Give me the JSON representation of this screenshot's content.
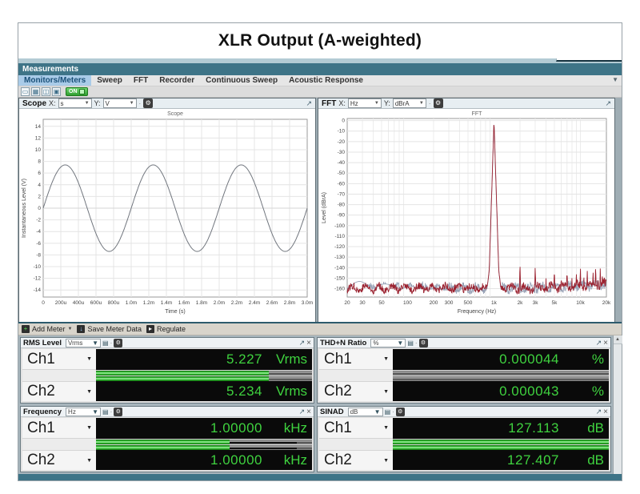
{
  "page_title": "XLR Output (A-weighted)",
  "measurements_panel": {
    "title": "Measurements"
  },
  "tabs": [
    {
      "label": "Monitors/Meters",
      "selected": true
    },
    {
      "label": "Sweep",
      "selected": false
    },
    {
      "label": "FFT",
      "selected": false
    },
    {
      "label": "Recorder",
      "selected": false
    },
    {
      "label": "Continuous Sweep",
      "selected": false
    },
    {
      "label": "Acoustic Response",
      "selected": false
    }
  ],
  "quick_toolbar": {
    "on_label": "ON"
  },
  "scope_panel": {
    "title": "Scope",
    "x_label": "X:",
    "x_unit": "s",
    "y_label": "Y:",
    "y_unit": "V"
  },
  "fft_panel": {
    "title": "FFT",
    "x_label": "X:",
    "x_unit": "Hz",
    "y_label": "Y:",
    "y_unit": "dBrA"
  },
  "meter_toolbar": {
    "add_meter": "Add Meter",
    "save_meter_data": "Save Meter Data",
    "regulate": "Regulate"
  },
  "meters": [
    {
      "title": "RMS Level",
      "unit": "Vrms",
      "channels": [
        {
          "name": "Ch1",
          "value": "5.227",
          "unit": "Vrms",
          "bar_pct": 80
        },
        {
          "name": "Ch2",
          "value": "5.234",
          "unit": "Vrms",
          "bar_pct": 80
        }
      ]
    },
    {
      "title": "THD+N Ratio",
      "unit": "%",
      "channels": [
        {
          "name": "Ch1",
          "value": "0.000044",
          "unit": "%",
          "bar_pct": 0
        },
        {
          "name": "Ch2",
          "value": "0.000043",
          "unit": "%",
          "bar_pct": 0
        }
      ]
    },
    {
      "title": "Frequency",
      "unit": "Hz",
      "channels": [
        {
          "name": "Ch1",
          "value": "1.00000",
          "unit": "kHz",
          "bar_pct": 62,
          "hold_pct": 93
        },
        {
          "name": "Ch2",
          "value": "1.00000",
          "unit": "kHz",
          "bar_pct": 62,
          "hold_pct": 93
        }
      ]
    },
    {
      "title": "SINAD",
      "unit": "dB",
      "channels": [
        {
          "name": "Ch1",
          "value": "127.113",
          "unit": "dB",
          "bar_pct": 100
        },
        {
          "name": "Ch2",
          "value": "127.407",
          "unit": "dB",
          "bar_pct": 100
        }
      ]
    }
  ],
  "chart_data": [
    {
      "type": "line",
      "title": "Scope",
      "xlabel": "Time (s)",
      "ylabel": "Instantaneous Level (V)",
      "xlim_s": [
        0,
        0.003
      ],
      "ylim_v": [
        -15.2,
        15.2
      ],
      "x_ticks": [
        "0",
        "200u",
        "400u",
        "600u",
        "800u",
        "1.0m",
        "1.2m",
        "1.4m",
        "1.6m",
        "1.8m",
        "2.0m",
        "2.2m",
        "2.4m",
        "2.6m",
        "2.8m",
        "3.0m"
      ],
      "y_tick_min": -14,
      "y_tick_max": 14,
      "y_tick_step": 2,
      "grid": true,
      "series": [
        {
          "name": "Ch1",
          "waveform": "sine",
          "amplitude_v": 7.4,
          "frequency_hz": 1000,
          "phase_deg": 0,
          "color": "#71767e"
        }
      ]
    },
    {
      "type": "line",
      "title": "FFT",
      "x_scale": "log",
      "xlabel": "Frequency (Hz)",
      "ylabel": "Level (dBrA)",
      "xlim_hz": [
        20,
        20000
      ],
      "ylim_db": [
        -168,
        2
      ],
      "x_ticks": [
        {
          "hz": 20,
          "label": "20"
        },
        {
          "hz": 30,
          "label": "30"
        },
        {
          "hz": 50,
          "label": "50"
        },
        {
          "hz": 100,
          "label": "100"
        },
        {
          "hz": 200,
          "label": "200"
        },
        {
          "hz": 300,
          "label": "300"
        },
        {
          "hz": 500,
          "label": "500"
        },
        {
          "hz": 1000,
          "label": "1k"
        },
        {
          "hz": 2000,
          "label": "2k"
        },
        {
          "hz": 3000,
          "label": "3k"
        },
        {
          "hz": 5000,
          "label": "5k"
        },
        {
          "hz": 10000,
          "label": "10k"
        },
        {
          "hz": 20000,
          "label": "20k"
        }
      ],
      "y_tick_min": -160,
      "y_tick_max": 0,
      "y_tick_step": 10,
      "grid": true,
      "noise_floor_db": -159,
      "fundamental": {
        "hz": 1000,
        "level_db": 0
      },
      "harmonics": [
        [
          2000,
          -134
        ],
        [
          3000,
          -136
        ],
        [
          4000,
          -149
        ],
        [
          5000,
          -139
        ],
        [
          6000,
          -145
        ],
        [
          7000,
          -140
        ],
        [
          8000,
          -147
        ],
        [
          9000,
          -144
        ],
        [
          10000,
          -137
        ],
        [
          11000,
          -146
        ],
        [
          12000,
          -140
        ],
        [
          13000,
          -148
        ],
        [
          14000,
          -141
        ],
        [
          15000,
          -136
        ],
        [
          16000,
          -145
        ],
        [
          17000,
          -139
        ],
        [
          18000,
          -142
        ],
        [
          19000,
          -144
        ]
      ],
      "series": [
        {
          "name": "Ch1",
          "color": "#98a2b6"
        },
        {
          "name": "Ch2",
          "color": "#9b2230"
        }
      ]
    }
  ]
}
